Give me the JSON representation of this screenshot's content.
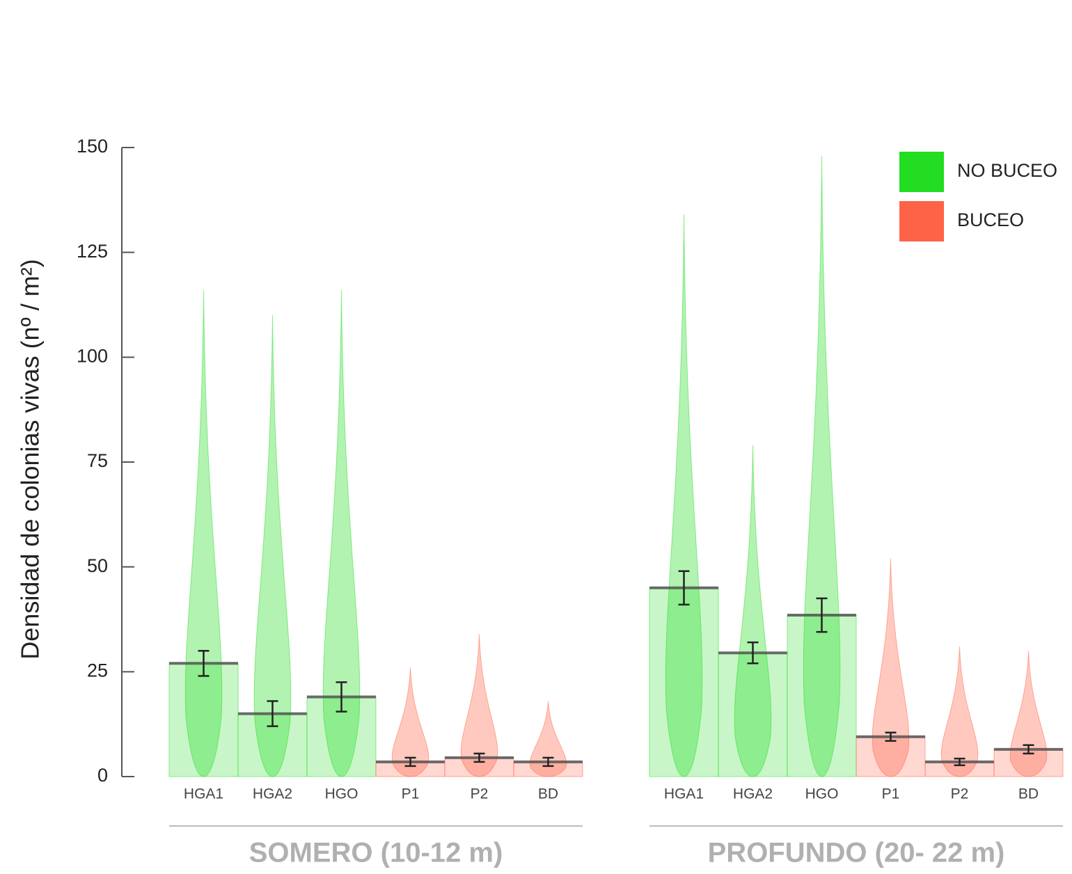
{
  "chart_data": {
    "type": "bar",
    "y_label": "Densidad de colonias vivas (nº / m²)",
    "ylim": [
      0,
      150
    ],
    "yticks": [
      0,
      25,
      50,
      75,
      100,
      125,
      150
    ],
    "series": [
      {
        "name": "NO BUCEO",
        "color": "#22dd22"
      },
      {
        "name": "BUCEO",
        "color": "#ff6347"
      }
    ],
    "groups": [
      {
        "label": "SOMERO (10-12 m)",
        "categories": [
          "HGA1",
          "HGA2",
          "HGO",
          "P1",
          "P2",
          "BD"
        ],
        "series": [
          {
            "values": [
              27,
              15,
              19,
              null,
              null,
              null
            ],
            "errors": [
              3,
              3,
              3.5,
              null,
              null,
              null
            ],
            "max": [
              116,
              110,
              116,
              null,
              null,
              null
            ]
          },
          {
            "values": [
              null,
              null,
              null,
              3.5,
              4.5,
              3.5
            ],
            "errors": [
              null,
              null,
              null,
              1,
              1,
              1
            ],
            "max": [
              null,
              null,
              null,
              26,
              34,
              18
            ]
          }
        ]
      },
      {
        "label": "PROFUNDO (20- 22 m)",
        "categories": [
          "HGA1",
          "HGA2",
          "HGO",
          "P1",
          "P2",
          "BD"
        ],
        "series": [
          {
            "values": [
              45,
              29.5,
              38.5,
              null,
              null,
              null
            ],
            "errors": [
              4,
              2.5,
              4,
              null,
              null,
              null
            ],
            "max": [
              134,
              79,
              148,
              null,
              null,
              null
            ]
          },
          {
            "values": [
              null,
              null,
              null,
              9.5,
              3.5,
              6.5
            ],
            "errors": [
              null,
              null,
              null,
              1,
              0.8,
              1
            ],
            "max": [
              null,
              null,
              null,
              52,
              31,
              30
            ]
          }
        ]
      }
    ]
  }
}
